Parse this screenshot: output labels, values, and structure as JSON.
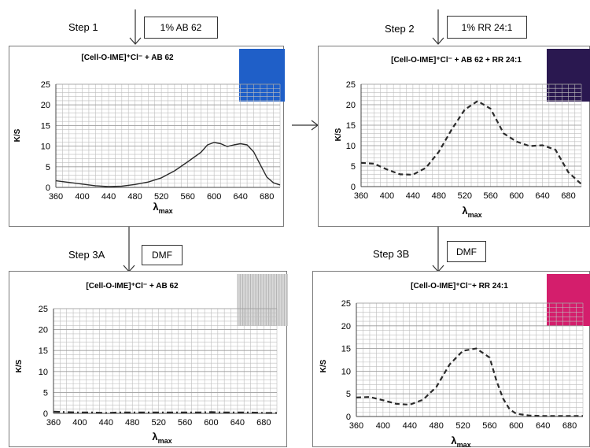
{
  "steps": {
    "step1": {
      "label": "Step 1",
      "reagent": "1% AB 62"
    },
    "step2": {
      "label": "Step 2",
      "reagent": "1% RR 24:1"
    },
    "step3a": {
      "label": "Step 3A",
      "reagent": "DMF"
    },
    "step3b": {
      "label": "Step 3B",
      "reagent": "DMF"
    }
  },
  "colors": {
    "swatch_ab62": "#1f5fc8",
    "swatch_mix": "#2a1850",
    "swatch_dmf_ab62": "#d8d8d8",
    "swatch_rr": "#d41e6c",
    "grid": "#bdbdbd",
    "line": "#2b2b2b"
  },
  "chart_data": [
    {
      "id": "step1",
      "type": "line",
      "title": "[Cell-O-IME]⁺Cl⁻ + AB 62",
      "xlabel": "λmax",
      "ylabel": "K/S",
      "xticks": [
        "360",
        "400",
        "440",
        "480",
        "520",
        "560",
        "600",
        "640",
        "680"
      ],
      "yticks": [
        "0",
        "5",
        "10",
        "15",
        "20",
        "25"
      ],
      "xlim": [
        360,
        700
      ],
      "ylim": [
        0,
        25
      ],
      "line_style": "solid",
      "grid": true,
      "x": [
        360,
        380,
        400,
        420,
        440,
        460,
        480,
        500,
        520,
        540,
        560,
        580,
        590,
        600,
        610,
        620,
        630,
        640,
        650,
        660,
        670,
        680,
        690,
        700
      ],
      "y": [
        1.6,
        1.2,
        0.8,
        0.4,
        0.2,
        0.3,
        0.7,
        1.3,
        2.3,
        4.0,
        6.2,
        8.5,
        10.3,
        10.9,
        10.6,
        9.9,
        10.3,
        10.6,
        10.3,
        8.6,
        5.5,
        2.5,
        1.1,
        0.6
      ]
    },
    {
      "id": "step2",
      "type": "line",
      "title": "[Cell-O-IME]⁺Cl⁻ + AB 62 + RR 24:1",
      "xlabel": "λmax",
      "ylabel": "K/S",
      "xticks": [
        "360",
        "400",
        "440",
        "480",
        "520",
        "560",
        "600",
        "640",
        "680"
      ],
      "yticks": [
        "0",
        "5",
        "10",
        "15",
        "20",
        "25"
      ],
      "xlim": [
        360,
        700
      ],
      "ylim": [
        0,
        25
      ],
      "line_style": "dashed",
      "grid": true,
      "x": [
        360,
        380,
        400,
        420,
        440,
        460,
        480,
        500,
        520,
        540,
        560,
        580,
        600,
        620,
        640,
        660,
        680,
        700
      ],
      "y": [
        5.8,
        5.6,
        4.2,
        3.0,
        2.9,
        4.6,
        8.5,
        14.0,
        18.8,
        20.9,
        19.0,
        13.0,
        11.0,
        9.9,
        10.1,
        9.0,
        3.5,
        0.6
      ]
    },
    {
      "id": "step3a",
      "type": "line",
      "title": "[Cell-O-IME]⁺Cl⁻ + AB 62",
      "xlabel": "λmax",
      "ylabel": "K/S",
      "xticks": [
        "360",
        "400",
        "440",
        "480",
        "520",
        "560",
        "600",
        "640",
        "680"
      ],
      "yticks": [
        "0",
        "5",
        "10",
        "15",
        "20",
        "25"
      ],
      "xlim": [
        360,
        700
      ],
      "ylim": [
        0,
        25
      ],
      "line_style": "dashdot",
      "grid": true,
      "x": [
        360,
        380,
        400,
        420,
        440,
        460,
        480,
        500,
        520,
        540,
        560,
        580,
        600,
        620,
        640,
        660,
        680,
        700
      ],
      "y": [
        0.4,
        0.3,
        0.2,
        0.2,
        0.1,
        0.2,
        0.2,
        0.2,
        0.2,
        0.2,
        0.2,
        0.2,
        0.3,
        0.2,
        0.2,
        0.2,
        0.1,
        0.1
      ]
    },
    {
      "id": "step3b",
      "type": "line",
      "title": "[Cell-O-IME]⁺Cl⁻+ RR 24:1",
      "xlabel": "λmax",
      "ylabel": "K/S",
      "xticks": [
        "360",
        "400",
        "440",
        "480",
        "520",
        "560",
        "600",
        "640",
        "680"
      ],
      "yticks": [
        "0",
        "5",
        "10",
        "15",
        "20",
        "25"
      ],
      "xlim": [
        360,
        700
      ],
      "ylim": [
        0,
        25
      ],
      "line_style": "dashed",
      "grid": true,
      "x": [
        360,
        380,
        400,
        420,
        440,
        460,
        480,
        500,
        520,
        540,
        560,
        570,
        580,
        590,
        600,
        620,
        640,
        660,
        680,
        700
      ],
      "y": [
        4.2,
        4.3,
        3.6,
        2.8,
        2.6,
        3.7,
        6.5,
        11.5,
        14.5,
        15.0,
        13.0,
        8.0,
        4.0,
        1.6,
        0.6,
        0.2,
        0.1,
        0.1,
        0.1,
        0.1
      ]
    }
  ]
}
